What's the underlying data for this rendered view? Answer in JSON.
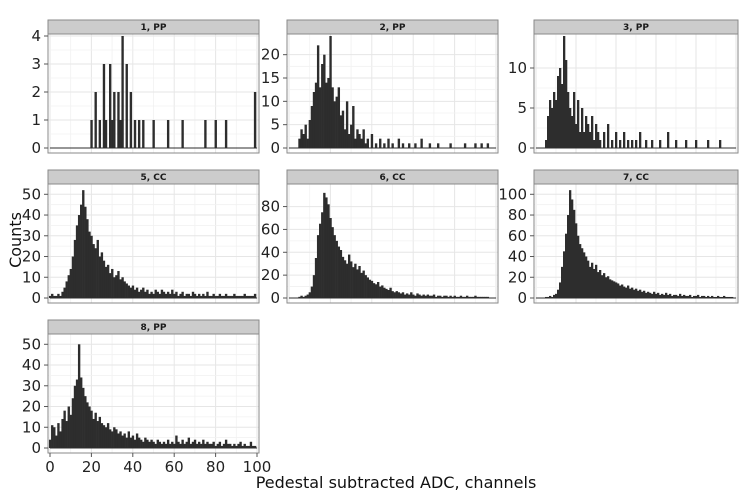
{
  "figure": {
    "xlabel": "Pedestal subtracted ADC, channels",
    "ylabel": "Counts"
  },
  "colors": {
    "bar": "#2d2d2d",
    "strip_bg": "#cccccc",
    "strip_border": "#8a8a8a",
    "grid": "#e6e6e6",
    "panel_border": "#8a8a8a"
  },
  "chart_data": [
    {
      "type": "bar",
      "title": "1, PP",
      "xlim": [
        0,
        100
      ],
      "ylim": [
        0,
        4
      ],
      "x_ticks": [
        0,
        20,
        40,
        60,
        80,
        100
      ],
      "y_ticks": [
        0,
        1,
        2,
        3,
        4
      ],
      "x": [
        20,
        22,
        24,
        26,
        27,
        29,
        30,
        31,
        33,
        34,
        35,
        37,
        39,
        41,
        43,
        45,
        50,
        57,
        64,
        75,
        80,
        85,
        99
      ],
      "values": [
        1,
        2,
        1,
        3,
        1,
        3,
        1,
        2,
        2,
        1,
        4,
        3,
        2,
        1,
        1,
        1,
        1,
        1,
        1,
        1,
        1,
        1,
        2
      ]
    },
    {
      "type": "bar",
      "title": "2, PP",
      "xlim": [
        0,
        100
      ],
      "ylim": [
        0,
        24
      ],
      "x_ticks": [
        0,
        20,
        40,
        60,
        80,
        100
      ],
      "y_ticks": [
        0,
        5,
        10,
        15,
        20
      ],
      "x": [
        5,
        6,
        7,
        8,
        9,
        10,
        11,
        12,
        13,
        14,
        15,
        16,
        17,
        18,
        19,
        20,
        21,
        22,
        23,
        24,
        25,
        26,
        27,
        28,
        29,
        30,
        31,
        32,
        33,
        34,
        35,
        36,
        37,
        38,
        40,
        42,
        44,
        46,
        48,
        50,
        53,
        55,
        58,
        61,
        64,
        68,
        72,
        78,
        85,
        90,
        93,
        96
      ],
      "values": [
        2,
        4,
        3,
        5,
        2,
        6,
        9,
        12,
        14,
        22,
        13,
        18,
        20,
        14,
        15,
        24,
        13,
        10,
        11,
        13,
        7,
        8,
        4,
        10,
        3,
        5,
        9,
        2,
        4,
        3,
        2,
        4,
        1,
        2,
        3,
        1,
        2,
        1,
        2,
        1,
        2,
        1,
        1,
        1,
        2,
        1,
        1,
        1,
        1,
        1,
        1,
        1
      ]
    },
    {
      "type": "bar",
      "title": "3, PP",
      "xlim": [
        0,
        100
      ],
      "ylim": [
        0,
        14
      ],
      "x_ticks": [
        0,
        20,
        40,
        60,
        80,
        100
      ],
      "y_ticks": [
        0,
        5,
        10
      ],
      "x": [
        5,
        6,
        7,
        8,
        9,
        10,
        11,
        12,
        13,
        14,
        15,
        16,
        17,
        18,
        19,
        20,
        21,
        22,
        23,
        24,
        25,
        26,
        27,
        28,
        29,
        30,
        31,
        32,
        34,
        36,
        38,
        40,
        42,
        44,
        46,
        48,
        50,
        52,
        55,
        58,
        62,
        66,
        70,
        75,
        80,
        86,
        92
      ],
      "values": [
        1,
        4,
        6,
        5,
        7,
        6,
        9,
        10,
        8,
        14,
        11,
        7,
        5,
        4,
        7,
        3,
        6,
        2,
        5,
        2,
        4,
        3,
        2,
        4,
        1,
        3,
        2,
        1,
        2,
        3,
        1,
        2,
        1,
        2,
        1,
        1,
        1,
        2,
        1,
        1,
        1,
        2,
        1,
        1,
        1,
        1,
        1
      ]
    },
    {
      "type": "bar",
      "title": "5, CC",
      "xlim": [
        0,
        100
      ],
      "ylim": [
        0,
        54
      ],
      "x_ticks": [
        0,
        20,
        40,
        60,
        80,
        100
      ],
      "y_ticks": [
        0,
        10,
        20,
        30,
        40,
        50
      ],
      "x": [
        0,
        1,
        2,
        3,
        4,
        5,
        6,
        7,
        8,
        9,
        10,
        11,
        12,
        13,
        14,
        15,
        16,
        17,
        18,
        19,
        20,
        21,
        22,
        23,
        24,
        25,
        26,
        27,
        28,
        29,
        30,
        31,
        32,
        33,
        34,
        35,
        36,
        37,
        38,
        39,
        40,
        41,
        42,
        43,
        44,
        45,
        46,
        47,
        48,
        49,
        50,
        51,
        52,
        53,
        54,
        55,
        56,
        57,
        58,
        59,
        60,
        61,
        62,
        63,
        64,
        65,
        66,
        67,
        68,
        69,
        70,
        71,
        72,
        73,
        74,
        75,
        76,
        77,
        78,
        79,
        80,
        81,
        82,
        83,
        84,
        85,
        86,
        87,
        88,
        89,
        90,
        91,
        92,
        93,
        94,
        95,
        96,
        97,
        98,
        99
      ],
      "values": [
        1,
        2,
        1,
        1,
        2,
        1,
        3,
        5,
        8,
        11,
        14,
        20,
        28,
        35,
        40,
        45,
        52,
        44,
        38,
        32,
        30,
        26,
        24,
        28,
        20,
        22,
        18,
        15,
        16,
        12,
        14,
        10,
        11,
        13,
        9,
        10,
        8,
        7,
        6,
        5,
        6,
        4,
        5,
        3,
        4,
        5,
        3,
        4,
        2,
        3,
        2,
        4,
        3,
        2,
        4,
        3,
        2,
        3,
        2,
        4,
        2,
        3,
        1,
        2,
        3,
        1,
        2,
        2,
        1,
        3,
        2,
        1,
        2,
        1,
        2,
        1,
        3,
        1,
        1,
        2,
        1,
        1,
        2,
        1,
        1,
        2,
        1,
        1,
        1,
        2,
        1,
        1,
        1,
        1,
        2,
        1,
        1,
        1,
        1,
        2
      ]
    },
    {
      "type": "bar",
      "title": "6, CC",
      "xlim": [
        0,
        100
      ],
      "ylim": [
        0,
        98
      ],
      "x_ticks": [
        0,
        20,
        40,
        60,
        80,
        100
      ],
      "y_ticks": [
        0,
        20,
        40,
        60,
        80
      ],
      "x": [
        5,
        6,
        7,
        8,
        9,
        10,
        11,
        12,
        13,
        14,
        15,
        16,
        17,
        18,
        19,
        20,
        21,
        22,
        23,
        24,
        25,
        26,
        27,
        28,
        29,
        30,
        31,
        32,
        33,
        34,
        35,
        36,
        37,
        38,
        39,
        40,
        41,
        42,
        43,
        44,
        45,
        46,
        47,
        48,
        49,
        50,
        51,
        52,
        53,
        54,
        55,
        56,
        57,
        58,
        59,
        60,
        61,
        62,
        63,
        64,
        65,
        66,
        67,
        68,
        69,
        70,
        71,
        72,
        73,
        74,
        75,
        76,
        77,
        78,
        79,
        80,
        81,
        82,
        83,
        84,
        85,
        86,
        87,
        88,
        89,
        90,
        91,
        92,
        93,
        94,
        95,
        96
      ],
      "values": [
        1,
        2,
        1,
        2,
        3,
        5,
        10,
        20,
        35,
        55,
        65,
        75,
        92,
        88,
        82,
        70,
        62,
        55,
        50,
        45,
        42,
        36,
        33,
        30,
        38,
        32,
        27,
        30,
        25,
        28,
        22,
        24,
        20,
        18,
        16,
        15,
        13,
        12,
        14,
        10,
        11,
        9,
        8,
        7,
        9,
        6,
        5,
        6,
        5,
        4,
        5,
        3,
        4,
        3,
        5,
        3,
        2,
        4,
        3,
        2,
        3,
        2,
        3,
        2,
        2,
        3,
        1,
        2,
        2,
        1,
        2,
        2,
        1,
        2,
        1,
        2,
        1,
        1,
        2,
        1,
        1,
        2,
        1,
        1,
        1,
        2,
        1,
        1,
        1,
        1,
        1,
        1
      ]
    },
    {
      "type": "bar",
      "title": "7, CC",
      "xlim": [
        0,
        100
      ],
      "ylim": [
        0,
        108
      ],
      "x_ticks": [
        0,
        20,
        40,
        60,
        80,
        100
      ],
      "y_ticks": [
        0,
        20,
        40,
        60,
        80,
        100
      ],
      "x": [
        5,
        6,
        7,
        8,
        9,
        10,
        11,
        12,
        13,
        14,
        15,
        16,
        17,
        18,
        19,
        20,
        21,
        22,
        23,
        24,
        25,
        26,
        27,
        28,
        29,
        30,
        31,
        32,
        33,
        34,
        35,
        36,
        37,
        38,
        39,
        40,
        41,
        42,
        43,
        44,
        45,
        46,
        47,
        48,
        49,
        50,
        51,
        52,
        53,
        54,
        55,
        56,
        57,
        58,
        59,
        60,
        61,
        62,
        63,
        64,
        65,
        66,
        67,
        68,
        69,
        70,
        71,
        72,
        73,
        74,
        75,
        76,
        77,
        78,
        79,
        80,
        81,
        82,
        83,
        84,
        85,
        86,
        87,
        88,
        89,
        90,
        91,
        92,
        93,
        94,
        95,
        96,
        97,
        98
      ],
      "values": [
        1,
        1,
        2,
        1,
        3,
        4,
        8,
        15,
        30,
        45,
        62,
        80,
        104,
        95,
        85,
        72,
        60,
        52,
        48,
        44,
        40,
        36,
        30,
        34,
        28,
        32,
        25,
        27,
        22,
        24,
        20,
        21,
        18,
        17,
        16,
        15,
        14,
        12,
        13,
        11,
        10,
        12,
        9,
        10,
        8,
        9,
        7,
        8,
        6,
        7,
        5,
        6,
        5,
        4,
        6,
        4,
        5,
        3,
        4,
        3,
        5,
        3,
        4,
        2,
        3,
        3,
        2,
        4,
        2,
        3,
        2,
        2,
        3,
        1,
        2,
        2,
        3,
        1,
        2,
        2,
        1,
        2,
        1,
        2,
        1,
        1,
        2,
        1,
        1,
        2,
        1,
        1,
        1,
        1
      ]
    },
    {
      "type": "bar",
      "title": "8, PP",
      "xlim": [
        0,
        100
      ],
      "ylim": [
        0,
        54
      ],
      "x_ticks": [
        0,
        20,
        40,
        60,
        80,
        100
      ],
      "y_ticks": [
        0,
        10,
        20,
        30,
        40,
        50
      ],
      "x": [
        0,
        1,
        2,
        3,
        4,
        5,
        6,
        7,
        8,
        9,
        10,
        11,
        12,
        13,
        14,
        15,
        16,
        17,
        18,
        19,
        20,
        21,
        22,
        23,
        24,
        25,
        26,
        27,
        28,
        29,
        30,
        31,
        32,
        33,
        34,
        35,
        36,
        37,
        38,
        39,
        40,
        41,
        42,
        43,
        44,
        45,
        46,
        47,
        48,
        49,
        50,
        51,
        52,
        53,
        54,
        55,
        56,
        57,
        58,
        59,
        60,
        61,
        62,
        63,
        64,
        65,
        66,
        67,
        68,
        69,
        70,
        71,
        72,
        73,
        74,
        75,
        76,
        77,
        78,
        79,
        80,
        81,
        82,
        83,
        84,
        85,
        86,
        87,
        88,
        89,
        90,
        91,
        92,
        93,
        94,
        95,
        96,
        97,
        98,
        99
      ],
      "values": [
        4,
        11,
        10,
        6,
        12,
        8,
        14,
        18,
        13,
        20,
        16,
        24,
        30,
        33,
        50,
        34,
        29,
        25,
        22,
        20,
        18,
        14,
        17,
        13,
        15,
        12,
        11,
        10,
        12,
        9,
        8,
        10,
        9,
        7,
        8,
        6,
        7,
        5,
        8,
        5,
        6,
        4,
        7,
        5,
        4,
        3,
        5,
        4,
        3,
        4,
        3,
        2,
        4,
        3,
        2,
        3,
        2,
        4,
        2,
        3,
        2,
        6,
        3,
        2,
        4,
        2,
        3,
        5,
        2,
        3,
        4,
        2,
        3,
        2,
        4,
        2,
        3,
        2,
        2,
        3,
        1,
        2,
        3,
        1,
        2,
        4,
        2,
        2,
        1,
        2,
        1,
        2,
        3,
        1,
        2,
        1,
        1,
        3,
        1,
        1
      ]
    }
  ]
}
